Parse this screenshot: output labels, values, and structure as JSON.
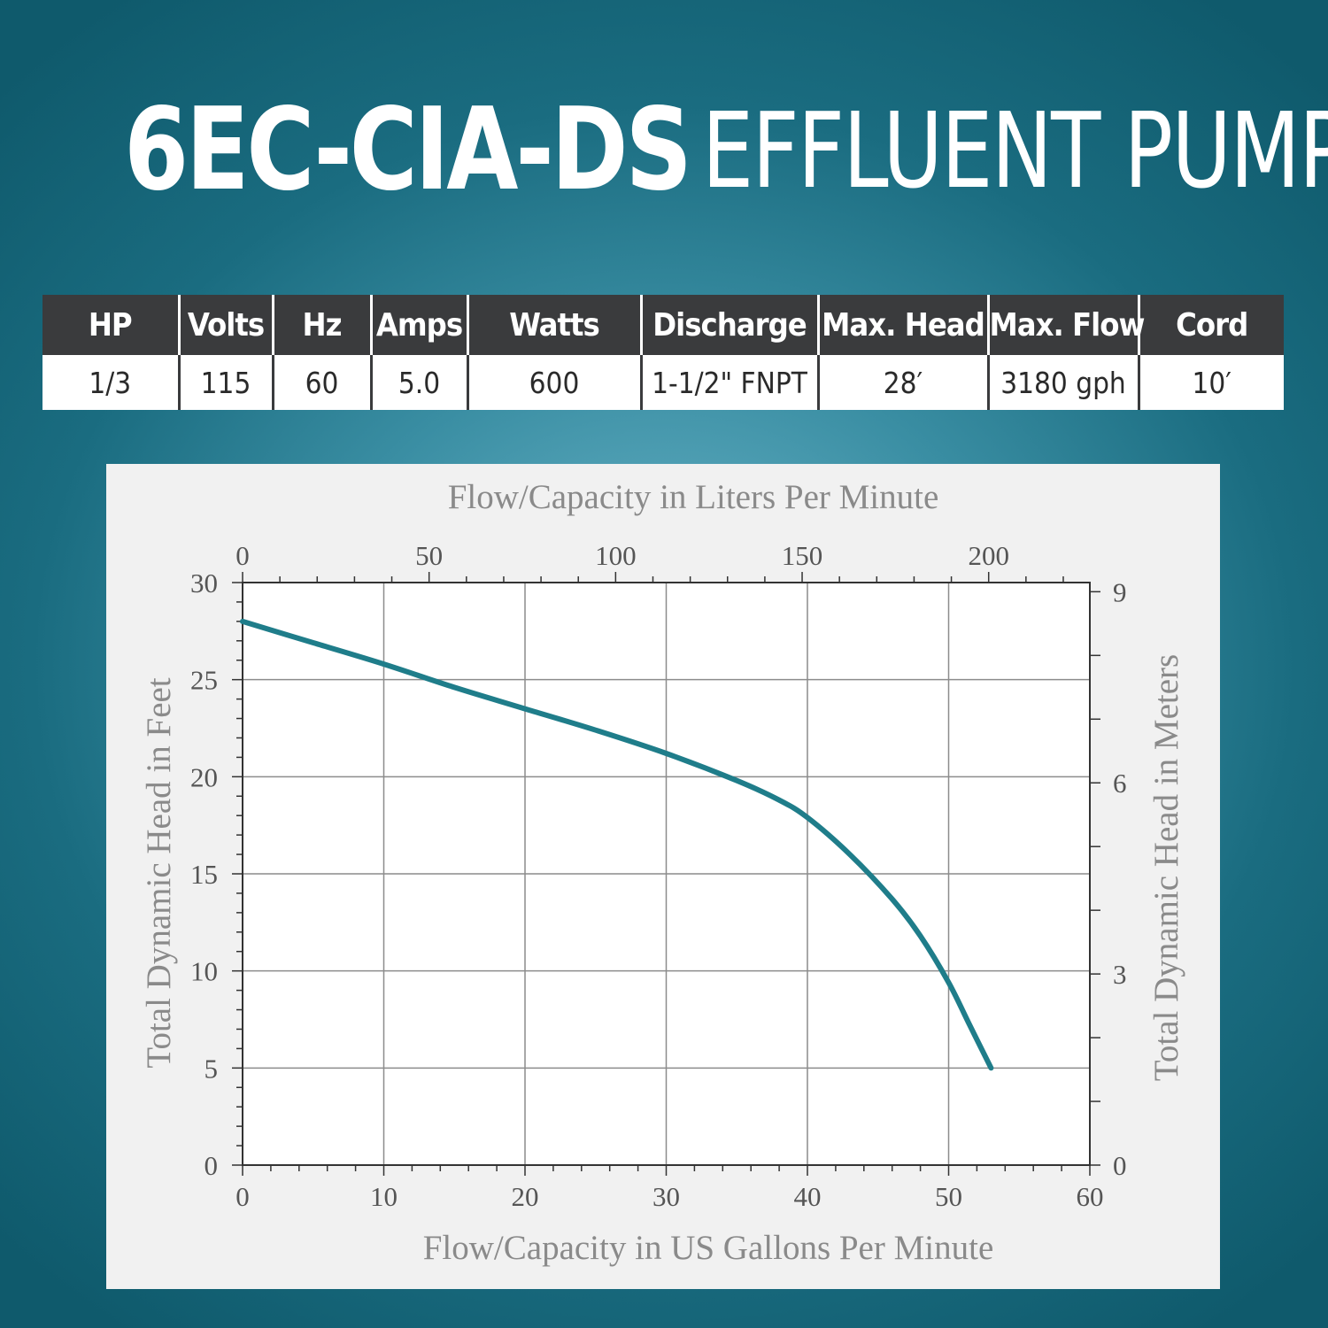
{
  "header": {
    "model": "6EC-CIA-DS",
    "product": "EFFLUENT PUMP"
  },
  "specs": {
    "headers": [
      "HP",
      "Volts",
      "Hz",
      "Amps",
      "Watts",
      "Discharge",
      "Max. Head",
      "Max. Flow",
      "Cord"
    ],
    "values": [
      "1/3",
      "115",
      "60",
      "5.0",
      "600",
      "1-1/2\" FNPT",
      "28′",
      "3180 gph",
      "10′"
    ]
  },
  "colors": {
    "curve": "#1f7d8a",
    "table_header": "#3a3b3d",
    "background": "#1a6c80"
  },
  "chart_data": {
    "type": "line",
    "title": "",
    "xlabel": "Flow/Capacity in US Gallons Per Minute",
    "ylabel": "Total Dynamic Head in Feet",
    "x2label": "Flow/Capacity in Liters Per Minute",
    "y2label": "Total Dynamic Head in Meters",
    "xlim": [
      0,
      60
    ],
    "ylim": [
      0,
      30
    ],
    "x_ticks": [
      "0",
      "10",
      "20",
      "30",
      "40",
      "50",
      "60"
    ],
    "y_ticks": [
      "0",
      "5",
      "10",
      "15",
      "20",
      "25",
      "30"
    ],
    "x2_ticks": [
      "0",
      "50",
      "100",
      "150",
      "200"
    ],
    "y2_ticks": [
      "0",
      "3",
      "6",
      "9"
    ],
    "grid": true,
    "series": [
      {
        "x": [
          0,
          5,
          10,
          15,
          20,
          25,
          30,
          35,
          38,
          40,
          43,
          46,
          48,
          50,
          51.5,
          53
        ],
        "y": [
          28,
          26.9,
          25.8,
          24.6,
          23.5,
          22.4,
          21.2,
          19.8,
          18.8,
          17.9,
          16.0,
          13.7,
          11.8,
          9.4,
          7.2,
          5
        ]
      }
    ]
  }
}
